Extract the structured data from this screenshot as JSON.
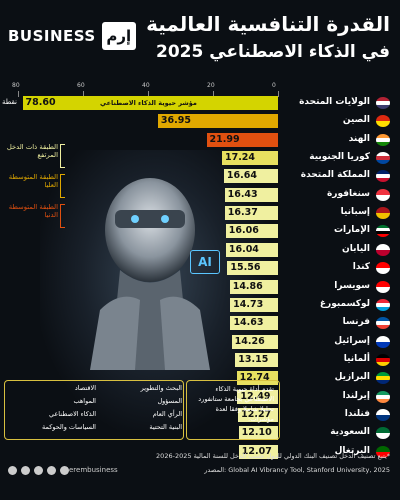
{
  "header": {
    "brand_word": "BUSINESS",
    "brand_logo": "إرم",
    "title_line1": "القدرة التنافسية العالمية",
    "title_line2": "في الذكاء الاصطناعي 2025"
  },
  "chart_data": {
    "type": "bar",
    "orientation": "horizontal",
    "title": "القدرة التنافسية العالمية في الذكاء الاصطناعي 2025",
    "bar_label": "مؤشر حيوية الذكاء الاصطناعي",
    "unit_label": "نقطة",
    "xlim": [
      0,
      80
    ],
    "x_ticks": [
      "80",
      "60",
      "40",
      "20",
      "0"
    ],
    "categories": [
      "الولايات المتحدة",
      "الصين",
      "الهند",
      "كوريا الجنوبية",
      "المملكة المتحدة",
      "سنغافورة",
      "إسبانيا",
      "الإمارات",
      "اليابان",
      "كندا",
      "سويسرا",
      "لوكسمبورغ",
      "فرنسا",
      "إسرائيل",
      "ألمانيا",
      "البرازيل",
      "إيرلندا",
      "فنلندا",
      "السعودية",
      "البرتغال"
    ],
    "values": [
      78.6,
      36.95,
      21.99,
      17.24,
      16.64,
      16.43,
      16.37,
      16.06,
      16.04,
      15.56,
      14.86,
      14.73,
      14.63,
      14.26,
      13.15,
      12.74,
      12.49,
      12.27,
      12.1,
      12.07
    ],
    "value_labels": [
      "78.60",
      "36.95",
      "21.99",
      "17.24",
      "16.64",
      "16.43",
      "16.37",
      "16.06",
      "16.04",
      "15.56",
      "14.86",
      "14.73",
      "14.63",
      "14.26",
      "13.15",
      "12.74",
      "12.49",
      "12.27",
      "12.10",
      "12.07"
    ],
    "tiers": [
      "high",
      "upper-middle",
      "lower-middle"
    ]
  },
  "bar_colors": [
    "#d4d400",
    "#e0a800",
    "#e05010",
    "#e8e060",
    "#f0f0a0",
    "#f0f0a0",
    "#f0f0a0",
    "#f0f0a0",
    "#f0f0a0",
    "#f0f0a0",
    "#f0f0a0",
    "#f0f0a0",
    "#f0f0a0",
    "#f0f0a0",
    "#f0f0a0",
    "#e8e060",
    "#f0f0a0",
    "#f0f0a0",
    "#f0f0a0",
    "#f0f0a0"
  ],
  "flags": [
    {
      "name": "flag-us",
      "colors": [
        "#b22234",
        "#ffffff",
        "#3c3b6e"
      ]
    },
    {
      "name": "flag-cn",
      "colors": [
        "#de2910",
        "#ffde00"
      ]
    },
    {
      "name": "flag-in",
      "colors": [
        "#ff9933",
        "#ffffff",
        "#138808"
      ]
    },
    {
      "name": "flag-kr",
      "colors": [
        "#ffffff",
        "#cd2e3a",
        "#0047a0"
      ]
    },
    {
      "name": "flag-gb",
      "colors": [
        "#012169",
        "#ffffff",
        "#c8102e"
      ]
    },
    {
      "name": "flag-sg",
      "colors": [
        "#ef3340",
        "#ffffff"
      ]
    },
    {
      "name": "flag-es",
      "colors": [
        "#aa151b",
        "#f1bf00"
      ]
    },
    {
      "name": "flag-ae",
      "colors": [
        "#00732f",
        "#ffffff",
        "#000000",
        "#ff0000"
      ]
    },
    {
      "name": "flag-jp",
      "colors": [
        "#ffffff",
        "#bc002d"
      ]
    },
    {
      "name": "flag-ca",
      "colors": [
        "#ff0000",
        "#ffffff"
      ]
    },
    {
      "name": "flag-ch",
      "colors": [
        "#ff0000",
        "#ffffff"
      ]
    },
    {
      "name": "flag-lu",
      "colors": [
        "#ed2939",
        "#ffffff",
        "#00a1de"
      ]
    },
    {
      "name": "flag-fr",
      "colors": [
        "#0055a4",
        "#ffffff",
        "#ef4135"
      ]
    },
    {
      "name": "flag-il",
      "colors": [
        "#ffffff",
        "#0038b8"
      ]
    },
    {
      "name": "flag-de",
      "colors": [
        "#000000",
        "#dd0000",
        "#ffce00"
      ]
    },
    {
      "name": "flag-br",
      "colors": [
        "#009c3b",
        "#ffdf00",
        "#002776"
      ]
    },
    {
      "name": "flag-ie",
      "colors": [
        "#169b62",
        "#ffffff",
        "#ff883e"
      ]
    },
    {
      "name": "flag-fi",
      "colors": [
        "#ffffff",
        "#003580"
      ]
    },
    {
      "name": "flag-sa",
      "colors": [
        "#006c35",
        "#ffffff"
      ]
    },
    {
      "name": "flag-pt",
      "colors": [
        "#006600",
        "#ff0000"
      ]
    }
  ],
  "legend": [
    {
      "text": "الطبقة ذات الدخل المرتفع",
      "color": "#f0f0a0"
    },
    {
      "text": "الطبقة المتوسطة العليا",
      "color": "#e0a800"
    },
    {
      "text": "الطبقة المتوسطة الدنيا",
      "color": "#e05010"
    }
  ],
  "ai_badge": "AI",
  "categories_panel": {
    "intro": "تقدم أداة حيوية الذكاء الاصطناعي بجامعة ستانفورد تحليلا شاملا وفقا لعدة مؤشرات:",
    "col1": [
      "البحث والتطوير",
      "المسؤول",
      "الرأي العام",
      "البنية التحتية"
    ],
    "col2": [
      "الاقتصاد",
      "المواهب",
      "",
      ""
    ],
    "col3": [
      "الذكاء الاصطناعي",
      "السياسات والحوكمة",
      "",
      ""
    ]
  },
  "footer": {
    "note": "*يتبع تصنيف الدخل تصنيف البنك الدولي للدول حسب الدخل للسنة المالية 2025-2026",
    "source": "المصدر: Global AI Vibrancy Tool, Stanford University, 2025",
    "handle": "@erembusiness"
  }
}
